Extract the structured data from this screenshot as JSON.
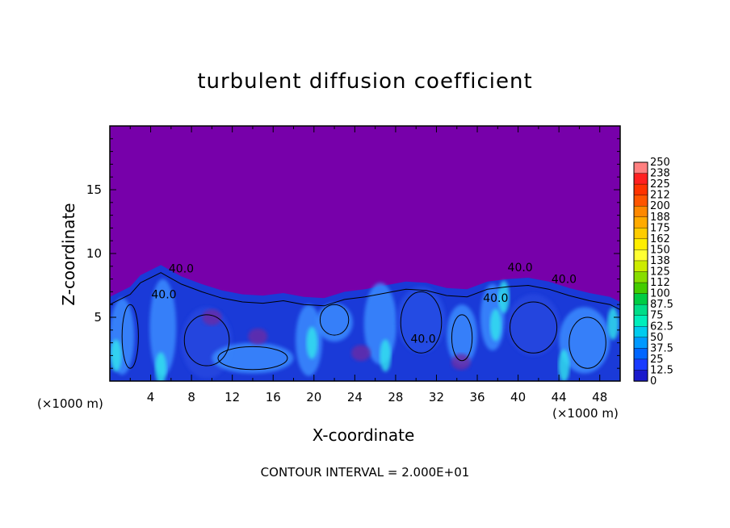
{
  "chart_data": {
    "type": "heatmap",
    "title": "turbulent diffusion coefficient",
    "xlabel": "X-coordinate",
    "ylabel": "Z-coordinate",
    "x_units_left": "(×1000 m)",
    "x_units_right": "(×1000 m)",
    "xlim": [
      0,
      50
    ],
    "ylim": [
      0,
      20
    ],
    "x_ticks": [
      "4",
      "8",
      "12",
      "16",
      "20",
      "24",
      "28",
      "32",
      "36",
      "40",
      "44",
      "48"
    ],
    "x_tick_values": [
      4,
      8,
      12,
      16,
      20,
      24,
      28,
      32,
      36,
      40,
      44,
      48
    ],
    "y_ticks": [
      "5",
      "10",
      "15"
    ],
    "y_tick_values": [
      5,
      10,
      15
    ],
    "colorbar": {
      "labels": [
        "250",
        "238",
        "225",
        "212",
        "200",
        "188",
        "175",
        "162",
        "150",
        "138",
        "125",
        "112",
        "100",
        "87.5",
        "75",
        "62.5",
        "50",
        "37.5",
        "25",
        "12.5",
        "0"
      ],
      "colors": [
        "#ff8080",
        "#ff2020",
        "#ff3300",
        "#ff5500",
        "#ff8800",
        "#ffaa00",
        "#ffcc00",
        "#ffee00",
        "#ffff33",
        "#cceb00",
        "#88dd00",
        "#44cc00",
        "#00cc44",
        "#00dd88",
        "#00eebb",
        "#00ccee",
        "#0099ff",
        "#0066ff",
        "#1a3cff",
        "#1a1acc",
        "#7700aa"
      ]
    },
    "contour_labels": [
      "40.0",
      "40.0",
      "40.0",
      "40.0",
      "40.0",
      "40.0"
    ],
    "contour_interval_text": "CONTOUR INTERVAL = 2.000E+01",
    "background_color": "#7700aa",
    "low_layer_color": "#1a3ad8",
    "active_color": "#3a8cff",
    "peak_color": "#33e6ee"
  }
}
